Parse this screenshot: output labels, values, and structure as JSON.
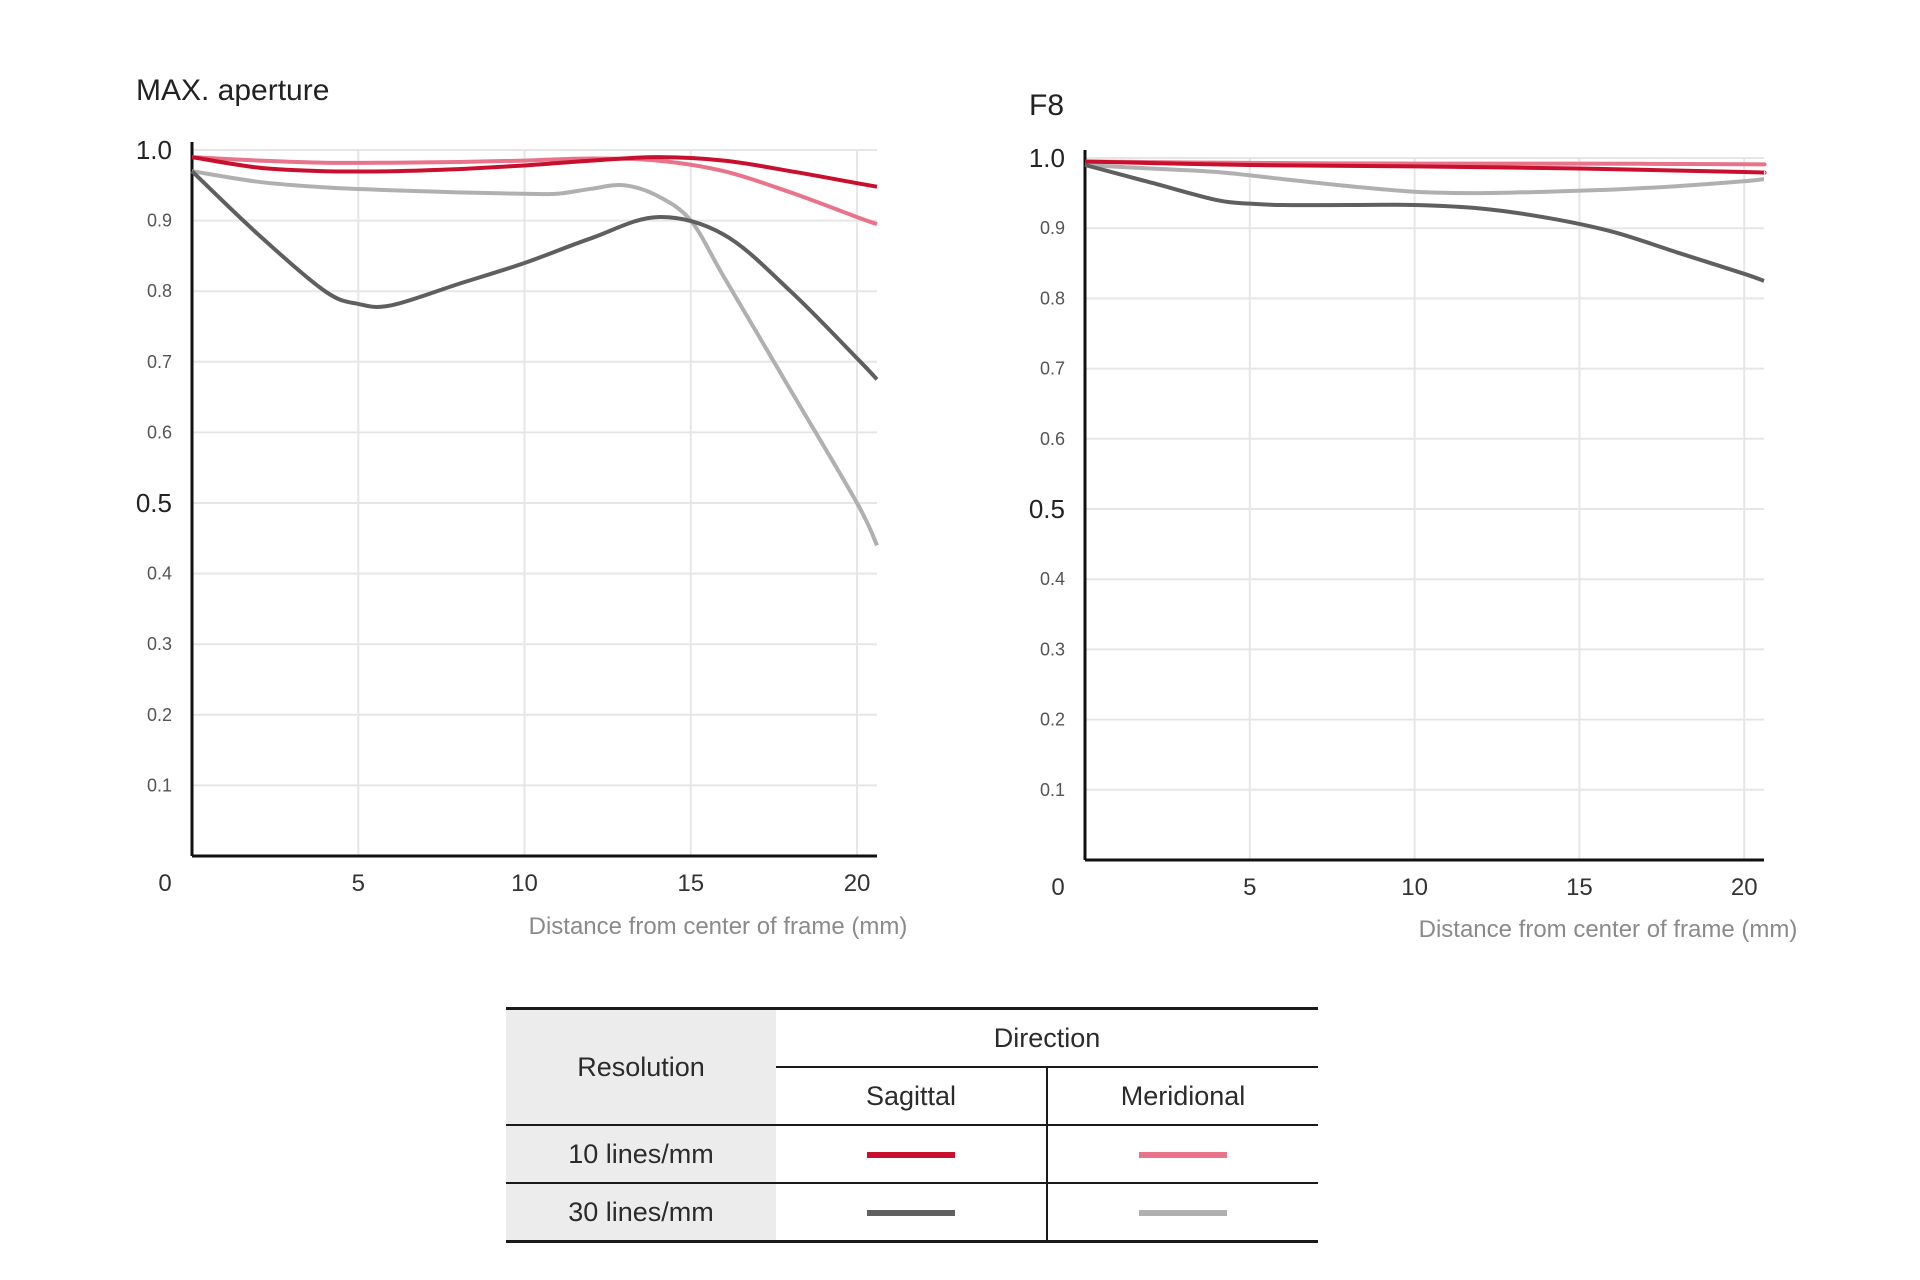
{
  "chart_data": [
    {
      "type": "line",
      "title": "MAX. aperture",
      "xlabel": "Distance from center of frame (mm)",
      "ylabel": "",
      "xlim": [
        0,
        20.6
      ],
      "ylim": [
        0,
        1.0
      ],
      "x_tick_labels": [
        "0",
        "5",
        "10",
        "15",
        "20"
      ],
      "y_tick_labels": [
        "0.1",
        "0.2",
        "0.3",
        "0.4",
        "0.5",
        "0.6",
        "0.7",
        "0.8",
        "0.9",
        "1.0"
      ],
      "series": [
        {
          "name": "10 lines/mm Sagittal",
          "color": "#c8102e",
          "x": [
            0,
            2,
            4,
            6,
            8,
            10,
            12,
            14,
            16,
            18,
            20,
            20.6
          ],
          "y": [
            0.99,
            0.975,
            0.97,
            0.97,
            0.973,
            0.978,
            0.985,
            0.99,
            0.985,
            0.97,
            0.953,
            0.948
          ]
        },
        {
          "name": "10 lines/mm Meridional",
          "color": "#e8738a",
          "x": [
            0,
            2,
            4,
            6,
            8,
            10,
            12,
            14,
            16,
            18,
            20,
            20.6
          ],
          "y": [
            0.99,
            0.985,
            0.982,
            0.982,
            0.983,
            0.985,
            0.988,
            0.985,
            0.97,
            0.94,
            0.905,
            0.895
          ]
        },
        {
          "name": "30 lines/mm Sagittal",
          "color": "#5f5f5f",
          "x": [
            0,
            2,
            4,
            5,
            6,
            8,
            10,
            12,
            14,
            16,
            18,
            20,
            20.6
          ],
          "y": [
            0.97,
            0.88,
            0.8,
            0.782,
            0.78,
            0.81,
            0.84,
            0.875,
            0.905,
            0.88,
            0.8,
            0.705,
            0.675
          ]
        },
        {
          "name": "30 lines/mm Meridional",
          "color": "#b0b0b0",
          "x": [
            0,
            2,
            4,
            6,
            8,
            10,
            11,
            12,
            13,
            14,
            15,
            16,
            18,
            20,
            20.6
          ],
          "y": [
            0.97,
            0.955,
            0.947,
            0.943,
            0.94,
            0.938,
            0.938,
            0.945,
            0.95,
            0.935,
            0.9,
            0.82,
            0.66,
            0.5,
            0.44
          ]
        }
      ]
    },
    {
      "type": "line",
      "title": "F8",
      "xlabel": "Distance from center of frame (mm)",
      "ylabel": "",
      "xlim": [
        0,
        20.6
      ],
      "ylim": [
        0,
        1.0
      ],
      "x_tick_labels": [
        "0",
        "5",
        "10",
        "15",
        "20"
      ],
      "y_tick_labels": [
        "0.1",
        "0.2",
        "0.3",
        "0.4",
        "0.5",
        "0.6",
        "0.7",
        "0.8",
        "0.9",
        "1.0"
      ],
      "series": [
        {
          "name": "10 lines/mm Sagittal",
          "color": "#c8102e",
          "x": [
            0,
            5,
            10,
            15,
            20,
            20.6
          ],
          "y": [
            0.995,
            0.99,
            0.988,
            0.985,
            0.98,
            0.979
          ]
        },
        {
          "name": "10 lines/mm Meridional",
          "color": "#e8738a",
          "x": [
            0,
            5,
            10,
            15,
            20,
            20.6
          ],
          "y": [
            0.995,
            0.993,
            0.992,
            0.992,
            0.991,
            0.991
          ]
        },
        {
          "name": "30 lines/mm Sagittal",
          "color": "#5f5f5f",
          "x": [
            0,
            2,
            4,
            5,
            6,
            8,
            10,
            12,
            14,
            16,
            18,
            20,
            20.6
          ],
          "y": [
            0.99,
            0.965,
            0.94,
            0.935,
            0.933,
            0.933,
            0.933,
            0.928,
            0.915,
            0.895,
            0.865,
            0.835,
            0.825
          ]
        },
        {
          "name": "30 lines/mm Meridional",
          "color": "#b0b0b0",
          "x": [
            0,
            2,
            4,
            6,
            8,
            10,
            12,
            14,
            16,
            18,
            20,
            20.6
          ],
          "y": [
            0.99,
            0.985,
            0.98,
            0.97,
            0.96,
            0.952,
            0.95,
            0.952,
            0.955,
            0.96,
            0.967,
            0.97
          ]
        }
      ]
    }
  ],
  "legend": {
    "resolution_header": "Resolution",
    "direction_header": "Direction",
    "sagittal_label": "Sagittal",
    "meridional_label": "Meridional",
    "rows": [
      {
        "label": "10 lines/mm",
        "sagittal_color": "#c8102e",
        "meridional_color": "#e8738a"
      },
      {
        "label": "30 lines/mm",
        "sagittal_color": "#5f5f5f",
        "meridional_color": "#b0b0b0"
      }
    ]
  }
}
